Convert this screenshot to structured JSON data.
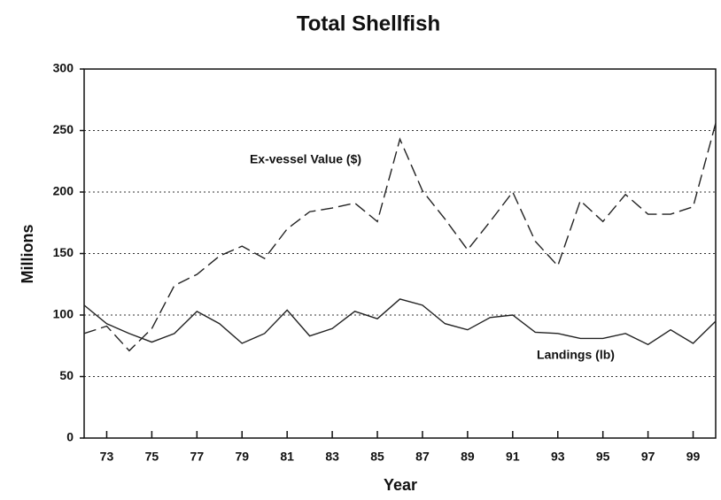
{
  "chart_data": {
    "type": "line",
    "title": "Total Shellfish",
    "x_label": "Year",
    "y_label": "Millions",
    "x": [
      72,
      73,
      74,
      75,
      76,
      77,
      78,
      79,
      80,
      81,
      82,
      83,
      84,
      85,
      86,
      87,
      88,
      89,
      90,
      91,
      92,
      93,
      94,
      95,
      96,
      97,
      98,
      99,
      100
    ],
    "series": [
      {
        "name": "Ex-vessel Value ($)",
        "color": "#222",
        "dash": "14,6",
        "values": [
          85,
          91,
          71,
          89,
          124,
          133,
          148,
          156,
          146,
          170,
          184,
          187,
          191,
          176,
          243,
          201,
          178,
          153,
          176,
          200,
          160,
          140,
          193,
          176,
          198,
          182,
          182,
          188,
          256
        ]
      },
      {
        "name": "Landings (lb)",
        "color": "#222",
        "dash": "none",
        "values": [
          108,
          93,
          85,
          78,
          85,
          103,
          93,
          77,
          85,
          104,
          83,
          89,
          103,
          97,
          113,
          108,
          93,
          88,
          98,
          100,
          86,
          85,
          81,
          81,
          85,
          76,
          88,
          77,
          95
        ]
      }
    ],
    "xlim": [
      72,
      100
    ],
    "xticks": [
      73,
      75,
      77,
      79,
      81,
      83,
      85,
      87,
      89,
      91,
      93,
      95,
      97,
      99
    ],
    "ylim": [
      0,
      300
    ],
    "yticks": [
      0,
      50,
      100,
      150,
      200,
      250,
      300
    ],
    "grid": true
  }
}
